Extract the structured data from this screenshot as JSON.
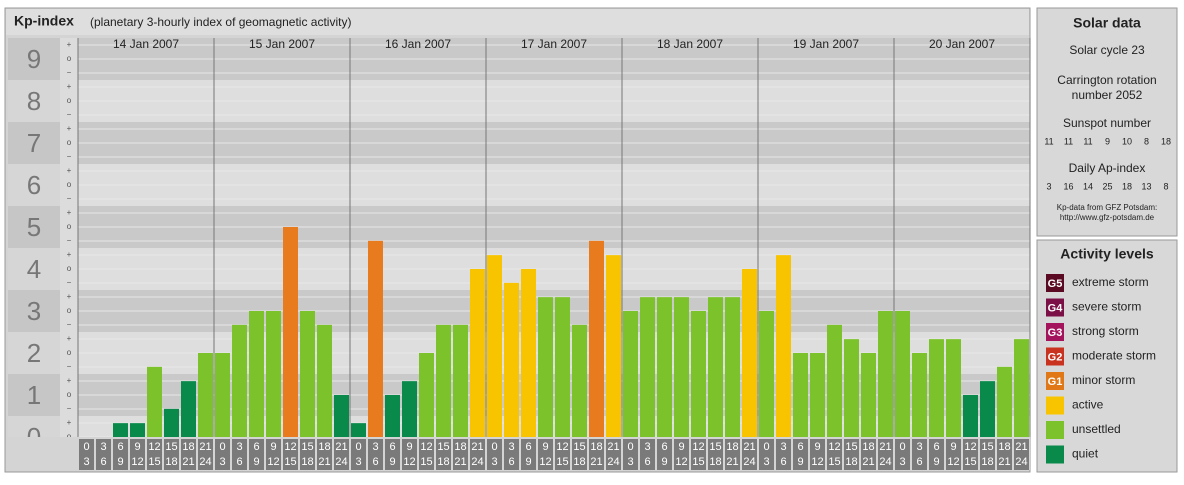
{
  "chart_data": {
    "type": "bar",
    "title": "Kp-index",
    "subtitle": "(planetary 3-hourly index of geomagnetic activity)",
    "ylim": [
      0,
      9.5
    ],
    "yticks": [
      0,
      1,
      2,
      3,
      4,
      5,
      6,
      7,
      8,
      9
    ],
    "minor_tick_labels": {
      "plus": "+",
      "zero": "o",
      "minus": "−"
    },
    "hour_starts": [
      0,
      3,
      6,
      9,
      12,
      15,
      18,
      21
    ],
    "hour_ends": [
      3,
      6,
      9,
      12,
      15,
      18,
      21,
      24
    ],
    "days": [
      {
        "date": "14 Jan 2007",
        "values": [
          0,
          0,
          0.33,
          0.33,
          1.67,
          0.67,
          1.33,
          2
        ],
        "colors": [
          "#0a8a4a",
          "#0a8a4a",
          "#0a8a4a",
          "#0a8a4a",
          "#7cc22a",
          "#0a8a4a",
          "#0a8a4a",
          "#7cc22a"
        ]
      },
      {
        "date": "15 Jan 2007",
        "values": [
          2,
          2.67,
          3,
          3,
          5,
          3,
          2.67,
          1
        ],
        "colors": [
          "#7cc22a",
          "#7cc22a",
          "#7cc22a",
          "#7cc22a",
          "#e87b1e",
          "#7cc22a",
          "#7cc22a",
          "#0a8a4a"
        ]
      },
      {
        "date": "16 Jan 2007",
        "values": [
          0.33,
          4.67,
          1,
          1.33,
          2,
          2.67,
          2.67,
          4
        ],
        "colors": [
          "#0a8a4a",
          "#e87b1e",
          "#0a8a4a",
          "#0a8a4a",
          "#7cc22a",
          "#7cc22a",
          "#7cc22a",
          "#f8c400"
        ]
      },
      {
        "date": "17 Jan 2007",
        "values": [
          4.33,
          3.67,
          4,
          3.33,
          3.33,
          2.67,
          4.67,
          4.33
        ],
        "colors": [
          "#f8c400",
          "#f8c400",
          "#f8c400",
          "#7cc22a",
          "#7cc22a",
          "#7cc22a",
          "#e87b1e",
          "#f8c400"
        ]
      },
      {
        "date": "18 Jan 2007",
        "values": [
          3,
          3.33,
          3.33,
          3.33,
          3,
          3.33,
          3.33,
          4
        ],
        "colors": [
          "#7cc22a",
          "#7cc22a",
          "#7cc22a",
          "#7cc22a",
          "#7cc22a",
          "#7cc22a",
          "#7cc22a",
          "#f8c400"
        ]
      },
      {
        "date": "19 Jan 2007",
        "values": [
          3,
          4.33,
          2,
          2,
          2.67,
          2.33,
          2,
          3
        ],
        "colors": [
          "#7cc22a",
          "#f8c400",
          "#7cc22a",
          "#7cc22a",
          "#7cc22a",
          "#7cc22a",
          "#7cc22a",
          "#7cc22a"
        ]
      },
      {
        "date": "20 Jan 2007",
        "values": [
          3,
          2,
          2.33,
          2.33,
          1,
          1.33,
          1.67,
          2.33
        ],
        "colors": [
          "#7cc22a",
          "#7cc22a",
          "#7cc22a",
          "#7cc22a",
          "#0a8a4a",
          "#0a8a4a",
          "#7cc22a",
          "#7cc22a"
        ]
      }
    ]
  },
  "solar_data": {
    "title": "Solar data",
    "solar_cycle": "Solar cycle 23",
    "carrington_1": "Carrington rotation",
    "carrington_2": "number 2052",
    "sunspot_title": "Sunspot number",
    "sunspot_values": [
      11,
      11,
      11,
      9,
      10,
      8,
      18
    ],
    "ap_title": "Daily Ap-index",
    "ap_values": [
      3,
      16,
      14,
      25,
      18,
      13,
      8
    ],
    "source": "Kp-data from GFZ Potsdam:",
    "url": "http://www.gfz-potsdam.de"
  },
  "activity_levels": {
    "title": "Activity levels",
    "items": [
      {
        "code": "G5",
        "label": "extreme storm",
        "color": "#5a0a22"
      },
      {
        "code": "G4",
        "label": "severe storm",
        "color": "#7a1046"
      },
      {
        "code": "G3",
        "label": "strong storm",
        "color": "#a3145c"
      },
      {
        "code": "G2",
        "label": "moderate storm",
        "color": "#c8321e"
      },
      {
        "code": "G1",
        "label": "minor storm",
        "color": "#e07818"
      },
      {
        "label": "active",
        "color": "#f8c400"
      },
      {
        "label": "unsettled",
        "color": "#7cc22a"
      },
      {
        "label": "quiet",
        "color": "#0a8a4a"
      }
    ]
  }
}
